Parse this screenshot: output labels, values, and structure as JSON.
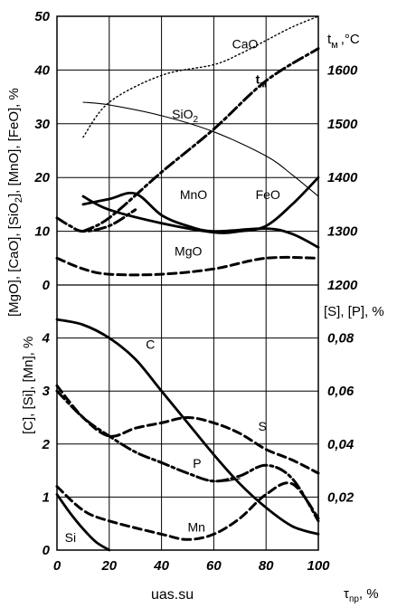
{
  "chart_data": [
    {
      "type": "line",
      "panel": "upper",
      "ylabel": "[MgO], [CaO], [SiO2], [MnO], [FeO], %",
      "ylabel2": "t м, °C",
      "xlim": [
        0,
        100
      ],
      "ylim": [
        0,
        50
      ],
      "y2lim": [
        1200,
        1700
      ],
      "yticks": [
        "0",
        "10",
        "20",
        "30",
        "40",
        "50"
      ],
      "y2ticks": [
        "1200",
        "1300",
        "1400",
        "1500",
        "1600"
      ],
      "grid": true,
      "series": [
        {
          "name": "CaO",
          "style": "dotted",
          "axis": "left",
          "points": [
            [
              10,
              27.5
            ],
            [
              20,
              34
            ],
            [
              40,
              39
            ],
            [
              60,
              41
            ],
            [
              70,
              43
            ],
            [
              80,
              45.5
            ],
            [
              90,
              48
            ],
            [
              100,
              50
            ]
          ]
        },
        {
          "name": "SiO2",
          "style": "thin-solid",
          "axis": "left",
          "points": [
            [
              10,
              34
            ],
            [
              20,
              33.5
            ],
            [
              40,
              31.5
            ],
            [
              60,
              28.5
            ],
            [
              80,
              24
            ],
            [
              90,
              20.5
            ],
            [
              100,
              16.5
            ]
          ]
        },
        {
          "name": "tм",
          "style": "dash-dot",
          "axis": "right",
          "points": [
            [
              10,
              1300
            ],
            [
              20,
              1325
            ],
            [
              40,
              1410
            ],
            [
              60,
              1490
            ],
            [
              80,
              1580
            ],
            [
              100,
              1640
            ]
          ]
        },
        {
          "name": "MnO",
          "style": "solid",
          "axis": "left",
          "points": [
            [
              10,
              15
            ],
            [
              20,
              16
            ],
            [
              30,
              17
            ],
            [
              40,
              13
            ],
            [
              50,
              11
            ],
            [
              60,
              10
            ],
            [
              80,
              10.5
            ],
            [
              90,
              9.5
            ],
            [
              100,
              7
            ]
          ]
        },
        {
          "name": "FeO",
          "style": "solid",
          "axis": "left",
          "points": [
            [
              10,
              16.5
            ],
            [
              20,
              14
            ],
            [
              40,
              11.5
            ],
            [
              60,
              9.8
            ],
            [
              70,
              10
            ],
            [
              80,
              11
            ],
            [
              90,
              15
            ],
            [
              100,
              20
            ]
          ]
        },
        {
          "name": "",
          "style": "dash-dot",
          "axis": "left",
          "points": [
            [
              0,
              12.5
            ],
            [
              5,
              11
            ],
            [
              10,
              10
            ],
            [
              20,
              11
            ],
            [
              30,
              14
            ]
          ]
        },
        {
          "name": "MgO",
          "style": "dashed",
          "axis": "left",
          "points": [
            [
              0,
              5
            ],
            [
              10,
              3
            ],
            [
              20,
              2
            ],
            [
              40,
              2
            ],
            [
              60,
              3
            ],
            [
              80,
              5
            ],
            [
              100,
              5
            ]
          ]
        }
      ]
    },
    {
      "type": "line",
      "panel": "lower",
      "xlabel": "τпр, %",
      "ylabel": "[C], [Si], [Mn], %",
      "ylabel2": "[S], [P], %",
      "xlim": [
        0,
        100
      ],
      "ylim": [
        0,
        5
      ],
      "y2lim": [
        0,
        0.1
      ],
      "xticks": [
        "0",
        "20",
        "40",
        "60",
        "80",
        "100"
      ],
      "yticks": [
        "0",
        "1",
        "2",
        "3",
        "4"
      ],
      "y2ticks": [
        "0,02",
        "0,04",
        "0,06",
        "0,08"
      ],
      "grid": true,
      "series": [
        {
          "name": "C",
          "style": "solid",
          "axis": "left",
          "points": [
            [
              0,
              4.35
            ],
            [
              10,
              4.25
            ],
            [
              20,
              4.0
            ],
            [
              30,
              3.6
            ],
            [
              40,
              3.0
            ],
            [
              50,
              2.4
            ],
            [
              60,
              1.8
            ],
            [
              70,
              1.25
            ],
            [
              80,
              0.8
            ],
            [
              90,
              0.45
            ],
            [
              100,
              0.3
            ]
          ]
        },
        {
          "name": "S",
          "style": "dashed",
          "axis": "right",
          "points": [
            [
              0,
              0.062
            ],
            [
              10,
              0.05
            ],
            [
              20,
              0.043
            ],
            [
              30,
              0.046
            ],
            [
              40,
              0.048
            ],
            [
              50,
              0.05
            ],
            [
              60,
              0.048
            ],
            [
              70,
              0.044
            ],
            [
              80,
              0.038
            ],
            [
              90,
              0.034
            ],
            [
              100,
              0.029
            ]
          ]
        },
        {
          "name": "P",
          "style": "dash-dot",
          "axis": "right",
          "points": [
            [
              0,
              0.06
            ],
            [
              10,
              0.05
            ],
            [
              20,
              0.043
            ],
            [
              30,
              0.037
            ],
            [
              40,
              0.033
            ],
            [
              50,
              0.029
            ],
            [
              60,
              0.026
            ],
            [
              70,
              0.028
            ],
            [
              80,
              0.032
            ],
            [
              90,
              0.027
            ],
            [
              100,
              0.011
            ]
          ]
        },
        {
          "name": "",
          "style": "thin-solid",
          "axis": "right",
          "points": [
            [
              55,
              0.027
            ],
            [
              60,
              0.026
            ],
            [
              65,
              0.026
            ],
            [
              70,
              0.027
            ]
          ]
        },
        {
          "name": "Mn",
          "style": "dashed",
          "axis": "left",
          "points": [
            [
              0,
              1.2
            ],
            [
              10,
              0.75
            ],
            [
              20,
              0.55
            ],
            [
              40,
              0.3
            ],
            [
              50,
              0.2
            ],
            [
              60,
              0.3
            ],
            [
              70,
              0.6
            ],
            [
              80,
              1.05
            ],
            [
              90,
              1.25
            ],
            [
              100,
              0.6
            ]
          ]
        },
        {
          "name": "Si",
          "style": "solid",
          "axis": "left",
          "points": [
            [
              0,
              1.05
            ],
            [
              5,
              0.7
            ],
            [
              10,
              0.4
            ],
            [
              15,
              0.15
            ],
            [
              20,
              0
            ]
          ]
        }
      ]
    }
  ],
  "watermark": "uas.su"
}
